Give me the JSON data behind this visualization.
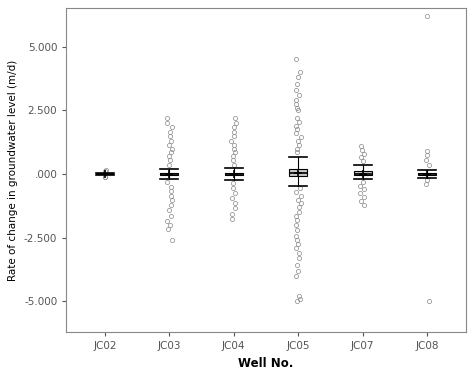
{
  "wells": [
    "JC02",
    "JC03",
    "JC04",
    "JC05",
    "JC07",
    "JC08"
  ],
  "ylim": [
    -6.2,
    6.5
  ],
  "yticks": [
    -5.0,
    -2.5,
    0.0,
    2.5,
    5.0
  ],
  "yticklabels": [
    "-5.000",
    "-2.500",
    ".000",
    "2.500",
    "5.000"
  ],
  "xlabel": "Well No.",
  "ylabel": "Rate of change in groundwater level (m/d)",
  "background_color": "#ffffff",
  "box_facecolor": "#c8c8c8",
  "box_edgecolor": "#000000",
  "outlier_facecolor": "none",
  "outlier_edgecolor": "#888888",
  "median_color": "#000000",
  "whisker_color": "#000000",
  "mean_color": "#000000",
  "spine_color": "#888888",
  "well_data": {
    "JC02": {
      "q1": -0.015,
      "median": 0.005,
      "q3": 0.02,
      "mean": 0.005,
      "whisker_low": -0.05,
      "whisker_high": 0.06,
      "outliers": [
        0.11,
        0.14,
        -0.1,
        -0.13
      ]
    },
    "JC03": {
      "q1": -0.04,
      "median": 0.005,
      "q3": 0.05,
      "mean": 0.005,
      "whisker_low": -0.18,
      "whisker_high": 0.18,
      "outliers": [
        0.35,
        0.55,
        0.7,
        0.85,
        1.0,
        1.15,
        1.3,
        1.5,
        1.65,
        1.85,
        2.0,
        2.2,
        -0.3,
        -0.5,
        -0.65,
        -0.85,
        -1.0,
        -1.2,
        -1.4,
        -1.65,
        -1.85,
        -2.0,
        -2.15,
        -2.6
      ]
    },
    "JC04": {
      "q1": -0.04,
      "median": 0.0,
      "q3": 0.04,
      "mean": -0.01,
      "whisker_low": -0.22,
      "whisker_high": 0.22,
      "outliers": [
        0.35,
        0.55,
        0.7,
        0.85,
        1.0,
        1.15,
        1.3,
        1.5,
        1.65,
        1.85,
        2.0,
        2.2,
        -0.35,
        -0.55,
        -0.75,
        -0.95,
        -1.15,
        -1.35,
        -1.55,
        -1.75
      ]
    },
    "JC05": {
      "q1": -0.08,
      "median": 0.05,
      "q3": 0.2,
      "mean": 0.05,
      "whisker_low": -0.45,
      "whisker_high": 0.65,
      "outliers": [
        0.85,
        1.0,
        1.15,
        1.3,
        1.45,
        1.6,
        1.75,
        1.9,
        2.05,
        2.2,
        2.5,
        2.6,
        2.75,
        2.9,
        3.1,
        3.3,
        3.55,
        3.8,
        4.0,
        4.5,
        -0.55,
        -0.7,
        -0.85,
        -1.0,
        -1.15,
        -1.3,
        -1.5,
        -1.65,
        -1.8,
        -2.0,
        -2.2,
        -2.45,
        -2.6,
        -2.75,
        -2.9,
        -3.1,
        -3.3,
        -3.55,
        -3.8,
        -4.0,
        -4.8,
        -4.9,
        -5.0
      ]
    },
    "JC07": {
      "q1": -0.04,
      "median": 0.0,
      "q3": 0.1,
      "mean": 0.02,
      "whisker_low": -0.2,
      "whisker_high": 0.35,
      "outliers": [
        0.5,
        0.65,
        0.8,
        0.95,
        1.1,
        -0.3,
        -0.45,
        -0.6,
        -0.75,
        -0.9,
        -1.05,
        -1.2
      ]
    },
    "JC08": {
      "q1": -0.025,
      "median": 0.005,
      "q3": 0.04,
      "mean": 0.005,
      "whisker_low": -0.15,
      "whisker_high": 0.15,
      "outliers": [
        0.35,
        0.55,
        0.75,
        0.9,
        -0.25,
        -0.38,
        -5.0,
        6.2
      ]
    }
  }
}
